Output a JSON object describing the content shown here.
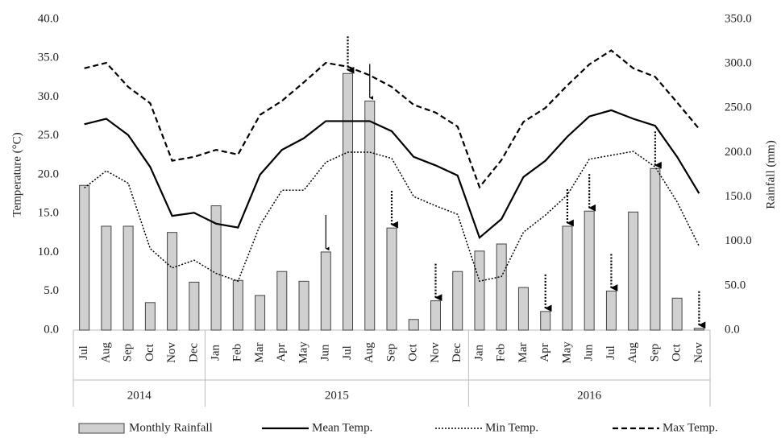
{
  "chart_data": {
    "type": "bar-line",
    "y_label": "Temperature (°C)",
    "y2_label": "Rainfall (mm)",
    "category_groups": [
      {
        "label": "2014",
        "categories": [
          "Jul",
          "Aug",
          "Sep",
          "Oct",
          "Nov",
          "Dec"
        ]
      },
      {
        "label": "2015",
        "categories": [
          "Jan",
          "Feb",
          "Mar",
          "Apr",
          "May",
          "Jun",
          "Jul",
          "Aug",
          "Sep",
          "Oct",
          "Nov",
          "Dec"
        ]
      },
      {
        "label": "2016",
        "categories": [
          "Jan",
          "Feb",
          "Mar",
          "Apr",
          "May",
          "Jun",
          "Jul",
          "Aug",
          "Sep",
          "Oct",
          "Nov"
        ]
      }
    ],
    "series": [
      {
        "name": "Monthly Rainfall",
        "type": "bar",
        "axis": "y2",
        "color": "#d0d0d0",
        "values": [
          163,
          117,
          117,
          31,
          110,
          54,
          140,
          56,
          39,
          66,
          55,
          88,
          289,
          258,
          115,
          12,
          33,
          66,
          89,
          97,
          48,
          21,
          117,
          134,
          44,
          133,
          182,
          36,
          2
        ]
      },
      {
        "name": "Mean Temp.",
        "type": "line",
        "style": "solid",
        "color": "#000000",
        "values": [
          26.5,
          27.2,
          25.1,
          21.0,
          14.7,
          15.1,
          13.7,
          13.2,
          20.0,
          23.2,
          24.7,
          26.9,
          26.9,
          26.9,
          25.6,
          22.3,
          21.2,
          19.9,
          11.9,
          14.3,
          19.7,
          21.8,
          24.9,
          27.5,
          28.3,
          27.2,
          26.3,
          22.3,
          17.6
        ]
      },
      {
        "name": "Min Temp.",
        "type": "line",
        "style": "dotted",
        "color": "#000000",
        "values": [
          18.3,
          20.5,
          18.9,
          10.5,
          8.0,
          9.0,
          7.3,
          6.3,
          13.5,
          18.0,
          18.0,
          21.6,
          22.9,
          22.9,
          22.1,
          17.2,
          16.0,
          14.9,
          6.3,
          6.9,
          12.6,
          14.8,
          17.4,
          22.0,
          22.5,
          23.0,
          21.0,
          16.5,
          10.8
        ]
      },
      {
        "name": "Max Temp.",
        "type": "line",
        "style": "dashed",
        "color": "#000000",
        "values": [
          33.7,
          34.4,
          31.3,
          29.2,
          21.8,
          22.3,
          23.2,
          22.6,
          27.7,
          29.5,
          31.9,
          34.4,
          33.9,
          32.8,
          31.3,
          29.0,
          28.0,
          26.2,
          18.4,
          21.9,
          26.8,
          28.6,
          31.5,
          34.2,
          36.0,
          33.7,
          32.6,
          29.3,
          25.9
        ]
      }
    ],
    "ylim": [
      0,
      40
    ],
    "yticks": [
      {
        "value": 0,
        "label": "0.0"
      },
      {
        "value": 5,
        "label": "5.0"
      },
      {
        "value": 10,
        "label": "10.0"
      },
      {
        "value": 15,
        "label": "15.0"
      },
      {
        "value": 20,
        "label": "20.0"
      },
      {
        "value": 25,
        "label": "25.0"
      },
      {
        "value": 30,
        "label": "30.0"
      },
      {
        "value": 35,
        "label": "35.0"
      },
      {
        "value": 40,
        "label": "40.0"
      }
    ],
    "y2lim": [
      0,
      350
    ],
    "y2ticks": [
      {
        "value": 0,
        "label": "0.0"
      },
      {
        "value": 50,
        "label": "50.0"
      },
      {
        "value": 100,
        "label": "100.0"
      },
      {
        "value": 150,
        "label": "150.0"
      },
      {
        "value": 200,
        "label": "200.0"
      },
      {
        "value": 250,
        "label": "250.0"
      },
      {
        "value": 300,
        "label": "300.0"
      },
      {
        "value": 350,
        "label": "350.0"
      }
    ],
    "grid": false,
    "legend": "bottom"
  }
}
